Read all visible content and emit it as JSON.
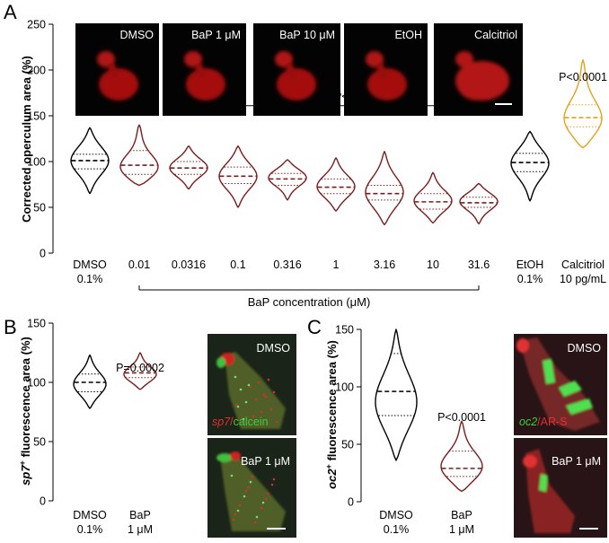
{
  "panels": {
    "A": {
      "letter": "A"
    },
    "B": {
      "letter": "B"
    },
    "C": {
      "letter": "C"
    }
  },
  "chart_data": [
    {
      "panel": "A",
      "type": "violin",
      "ylabel": "Corrected operculum area (%)",
      "ylim": [
        0,
        250
      ],
      "yticks": [
        0,
        50,
        100,
        150,
        200,
        250
      ],
      "categories": [
        "DMSO 0.1%",
        "0.01",
        "0.0316",
        "0.1",
        "0.316",
        "1",
        "3.16",
        "10",
        "31.6",
        "EtOH 0.1%",
        "Calcitriol 10 pg/mL"
      ],
      "category_lines": [
        [
          "DMSO",
          "0.1%"
        ],
        [
          "0.01"
        ],
        [
          "0.0316"
        ],
        [
          "0.1"
        ],
        [
          "0.316"
        ],
        [
          "1"
        ],
        [
          "3.16"
        ],
        [
          "10"
        ],
        [
          "31.6"
        ],
        [
          "EtOH",
          "0.1%"
        ],
        [
          "Calcitriol",
          "10 pg/mL"
        ]
      ],
      "group_label": "BaP concentration (μM)",
      "colors": [
        "#000000",
        "#7b1c1c",
        "#7b1c1c",
        "#7b1c1c",
        "#7b1c1c",
        "#7b1c1c",
        "#7b1c1c",
        "#7b1c1c",
        "#7b1c1c",
        "#000000",
        "#e3a21a"
      ],
      "violins": [
        {
          "min": 65,
          "max": 137,
          "q1": 92,
          "median": 101,
          "q3": 108,
          "widest": 101
        },
        {
          "min": 74,
          "max": 140,
          "q1": 86,
          "median": 96,
          "q3": 112,
          "widest": 90
        },
        {
          "min": 70,
          "max": 117,
          "q1": 86,
          "median": 93,
          "q3": 100,
          "widest": 93
        },
        {
          "min": 50,
          "max": 117,
          "q1": 76,
          "median": 84,
          "q3": 94,
          "widest": 84
        },
        {
          "min": 58,
          "max": 102,
          "q1": 74,
          "median": 81,
          "q3": 87,
          "widest": 83
        },
        {
          "min": 46,
          "max": 104,
          "q1": 65,
          "median": 72,
          "q3": 81,
          "widest": 72
        },
        {
          "min": 31,
          "max": 111,
          "q1": 58,
          "median": 65,
          "q3": 74,
          "widest": 65
        },
        {
          "min": 33,
          "max": 88,
          "q1": 48,
          "median": 56,
          "q3": 65,
          "widest": 56
        },
        {
          "min": 32,
          "max": 76,
          "q1": 50,
          "median": 55,
          "q3": 61,
          "widest": 57
        },
        {
          "min": 57,
          "max": 133,
          "q1": 89,
          "median": 99,
          "q3": 109,
          "widest": 99
        },
        {
          "min": 115,
          "max": 211,
          "q1": 138,
          "median": 148,
          "q3": 162,
          "widest": 142
        }
      ],
      "annotations": [
        {
          "text": "P<0.0001",
          "target": "Calcitriol 10 pg/mL"
        },
        {
          "text": "P<0.0001",
          "from": "0.1",
          "to": "31.6",
          "y": 163
        }
      ],
      "inset_labels": [
        "DMSO",
        "BaP 1 μM",
        "BaP 10 μM",
        "EtOH",
        "Calcitriol"
      ]
    },
    {
      "panel": "B",
      "type": "violin",
      "ylabel_italic": "sp7",
      "ylabel_sup": "+",
      "ylabel_rest": " fluorescence area (%)",
      "ylim": [
        0,
        150
      ],
      "yticks": [
        0,
        50,
        100,
        150
      ],
      "categories": [
        "DMSO 0.1%",
        "BaP 1 μM"
      ],
      "category_lines": [
        [
          "DMSO",
          "0.1%"
        ],
        [
          "BaP",
          "1 μM"
        ]
      ],
      "colors": [
        "#000000",
        "#7b1c1c"
      ],
      "violins": [
        {
          "min": 78,
          "max": 123,
          "q1": 92,
          "median": 100,
          "q3": 107,
          "widest": 98
        },
        {
          "min": 94,
          "max": 125,
          "q1": 104,
          "median": 108,
          "q3": 113,
          "widest": 106
        }
      ],
      "annotations": [
        {
          "text": "P=0.0002",
          "target": "BaP 1 μM"
        }
      ],
      "inset_labels": [
        "DMSO",
        "BaP 1 μM"
      ],
      "inset_legend": [
        {
          "text": "sp7",
          "color": "#e03030",
          "italic": true
        },
        {
          "text": "/",
          "color": "#e03030"
        },
        {
          "text": "calcein",
          "color": "#3dcc3d"
        }
      ]
    },
    {
      "panel": "C",
      "type": "violin",
      "ylabel_italic": "oc2",
      "ylabel_sup": "+",
      "ylabel_rest": " fluorescence area (%)",
      "ylim": [
        0,
        150
      ],
      "yticks": [
        0,
        50,
        100,
        150
      ],
      "categories": [
        "DMSO 0.1%",
        "BaP 1 μM"
      ],
      "category_lines": [
        [
          "DMSO",
          "0.1%"
        ],
        [
          "BaP",
          "1 μM"
        ]
      ],
      "colors": [
        "#000000",
        "#7b1c1c"
      ],
      "violins": [
        {
          "min": 36,
          "max": 150,
          "q1": 75,
          "median": 96,
          "q3": 129,
          "widest": 85
        },
        {
          "min": 9,
          "max": 70,
          "q1": 22,
          "median": 29,
          "q3": 44,
          "widest": 28
        }
      ],
      "annotations": [
        {
          "text": "P<0.0001",
          "target": "BaP 1 μM"
        }
      ],
      "inset_labels": [
        "DMSO",
        "BaP 1 μM"
      ],
      "inset_legend": [
        {
          "text": "oc2",
          "color": "#3dcc3d",
          "italic": true
        },
        {
          "text": "/",
          "color": "#e03030"
        },
        {
          "text": "AR-S",
          "color": "#e03030"
        }
      ]
    }
  ]
}
